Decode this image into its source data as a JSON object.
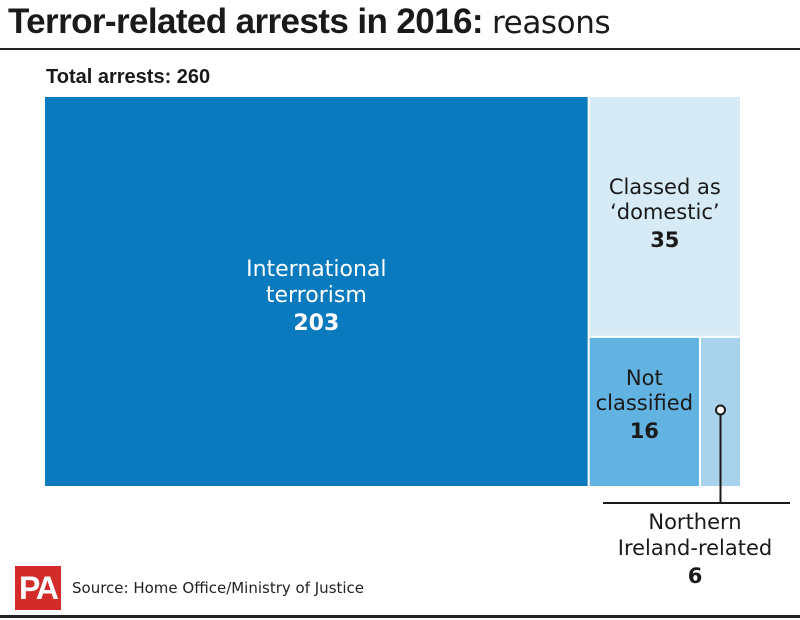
{
  "header": {
    "title_bold": "Terror-related arrests in 2016:",
    "title_light": "reasons"
  },
  "subtitle": "Total arrests: 260",
  "colors": {
    "international": "#0a7abf",
    "domestic": "#d6ebf6",
    "not_classified": "#63b3e2",
    "northern_ireland": "#a9d2ec"
  },
  "chart_data": {
    "type": "treemap",
    "total": 260,
    "nodes": [
      {
        "key": "international",
        "label_lines": [
          "International",
          "terrorism"
        ],
        "value": 203
      },
      {
        "key": "domestic",
        "label_lines": [
          "Classed as",
          "‘domestic’"
        ],
        "value": 35
      },
      {
        "key": "not_classified",
        "label_lines": [
          "Not",
          "classified"
        ],
        "value": 16
      },
      {
        "key": "northern_ireland",
        "label_lines": [
          "Northern",
          "Ireland-related"
        ],
        "value": 6
      }
    ]
  },
  "footer": {
    "logo": "PA",
    "source": "Source: Home Office/Ministry of Justice"
  }
}
